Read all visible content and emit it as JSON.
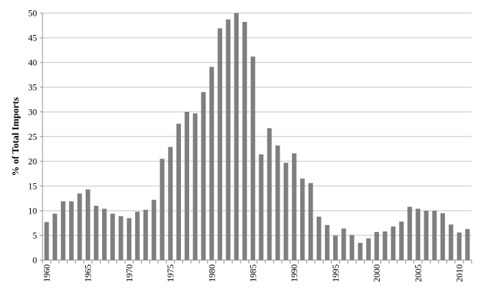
{
  "chart_data": {
    "type": "bar",
    "title": "",
    "xlabel": "",
    "ylabel": "% of Total Imports",
    "ylim": [
      0,
      50
    ],
    "yticks": [
      0,
      5,
      10,
      15,
      20,
      25,
      30,
      35,
      40,
      45,
      50
    ],
    "xtick_labels": [
      "1960",
      "1965",
      "1970",
      "1975",
      "1980",
      "1985",
      "1990",
      "1995",
      "2000",
      "2005",
      "2010"
    ],
    "grid": true,
    "legend": "none",
    "bar_color": "#7f7f7f",
    "categories": [
      1960,
      1961,
      1962,
      1963,
      1964,
      1965,
      1966,
      1967,
      1968,
      1969,
      1970,
      1971,
      1972,
      1973,
      1974,
      1975,
      1976,
      1977,
      1978,
      1979,
      1980,
      1981,
      1982,
      1983,
      1984,
      1985,
      1986,
      1987,
      1988,
      1989,
      1990,
      1991,
      1992,
      1993,
      1994,
      1995,
      1996,
      1997,
      1998,
      1999,
      2000,
      2001,
      2002,
      2003,
      2004,
      2005,
      2006,
      2007,
      2008,
      2009,
      2010,
      2011
    ],
    "values": [
      7.7,
      9.4,
      11.9,
      11.9,
      13.5,
      14.3,
      11.0,
      10.4,
      9.4,
      8.9,
      8.5,
      9.8,
      10.2,
      12.2,
      20.5,
      22.9,
      27.6,
      30.0,
      29.7,
      34.0,
      39.1,
      46.9,
      48.7,
      50.0,
      48.2,
      41.2,
      21.4,
      26.7,
      23.2,
      19.7,
      21.6,
      16.5,
      15.6,
      8.8,
      7.1,
      5.0,
      6.4,
      5.1,
      3.5,
      4.4,
      5.7,
      5.8,
      6.8,
      7.8,
      10.8,
      10.4,
      10.0,
      10.0,
      9.5,
      7.2,
      5.6,
      6.3
    ]
  }
}
